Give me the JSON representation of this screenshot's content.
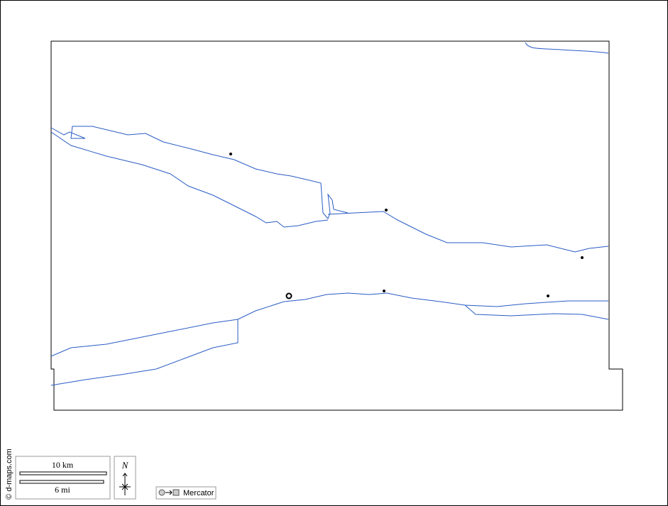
{
  "credit": "© d-maps.com",
  "scale": {
    "km": "10 km",
    "mi": "6 mi"
  },
  "compass": "N",
  "projection": "Mercator"
}
